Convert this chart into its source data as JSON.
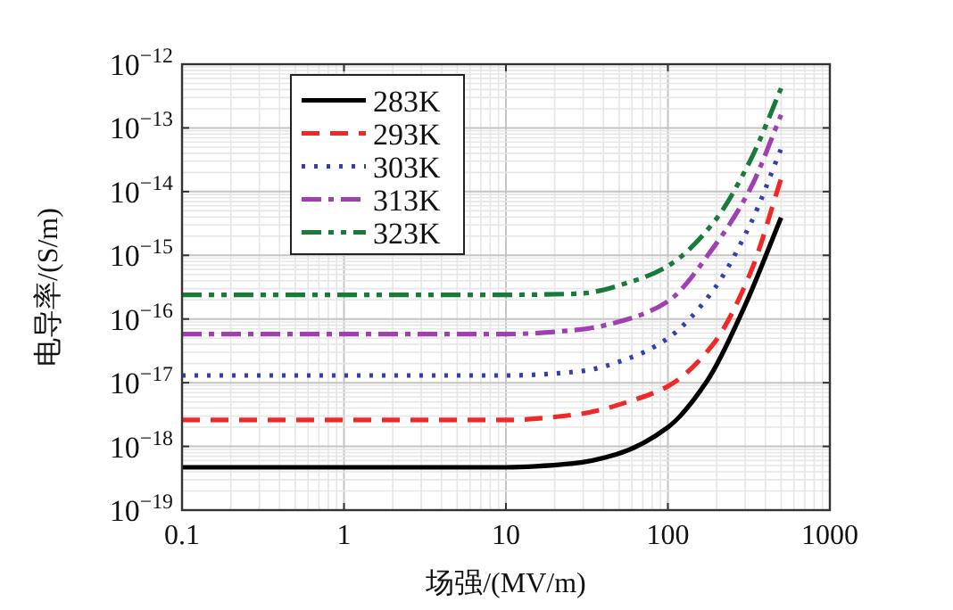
{
  "chart_data": {
    "type": "line",
    "xlabel": "场强/(MV/m)",
    "ylabel": "电导率/(S/m)",
    "log": "xy",
    "xlim": [
      0.1,
      1000
    ],
    "xticks": [
      0.1,
      1,
      10,
      100,
      1000
    ],
    "ylim": [
      1e-19,
      1e-12
    ],
    "yticks": [
      {
        "value": 1e-19,
        "label": "10$^{−19}$"
      },
      {
        "value": 1e-18,
        "label": "10$^{−18}$"
      },
      {
        "value": 1e-17,
        "label": "10$^{−17}$"
      },
      {
        "value": 1e-16,
        "label": "10$^{−16}$"
      },
      {
        "value": 1e-15,
        "label": "10$^{−15}$"
      },
      {
        "value": 1e-14,
        "label": "10$^{−14}$"
      },
      {
        "value": 1e-13,
        "label": "10$^{−13}$"
      },
      {
        "value": 1e-12,
        "label": "10$^{−12}$"
      }
    ],
    "grid": true,
    "legend": "top left",
    "series": [
      {
        "name": "283K",
        "color": "#000000",
        "line_style": "solid",
        "x": [
          0.1,
          1,
          10,
          26,
          48,
          100,
          176,
          295,
          500
        ],
        "values": [
          4.7e-19,
          4.7e-19,
          4.7e-19,
          5.4e-19,
          7.5e-19,
          2e-18,
          1.1e-17,
          1.5e-16,
          3.9e-15
        ]
      },
      {
        "name": "293K",
        "color": "#f02828",
        "line_style": "dashed",
        "x": [
          0.1,
          1,
          10,
          28,
          62,
          100,
          190,
          325,
          500
        ],
        "values": [
          2.6e-18,
          2.6e-18,
          2.6e-18,
          3.2e-18,
          5.4e-18,
          8.8e-18,
          4e-17,
          5.5e-16,
          1.6e-14
        ]
      },
      {
        "name": "303K",
        "color": "#3040b0",
        "line_style": "dotted",
        "x": [
          0.1,
          1,
          10,
          28,
          62,
          100,
          190,
          325,
          500
        ],
        "values": [
          1.3e-17,
          1.3e-17,
          1.3e-17,
          1.5e-17,
          2.6e-17,
          5e-17,
          2.8e-16,
          3.2e-15,
          4.7e-14
        ]
      },
      {
        "name": "313K",
        "color": "#a040b0",
        "line_style": "dashdot",
        "x": [
          0.1,
          1,
          10,
          28,
          62,
          100,
          190,
          325,
          500
        ],
        "values": [
          5.8e-17,
          5.8e-17,
          5.8e-17,
          6.8e-17,
          1.07e-16,
          1.9e-16,
          1.3e-15,
          1.15e-14,
          1.6e-13
        ]
      },
      {
        "name": "323K",
        "color": "#1a7a3a",
        "line_style": "dashdotdot",
        "x": [
          0.1,
          1,
          10,
          28,
          62,
          100,
          190,
          325,
          500
        ],
        "values": [
          2.4e-16,
          2.4e-16,
          2.4e-16,
          2.5e-16,
          4e-16,
          6.8e-16,
          3.2e-15,
          3.2e-14,
          4.2e-13
        ]
      }
    ]
  }
}
